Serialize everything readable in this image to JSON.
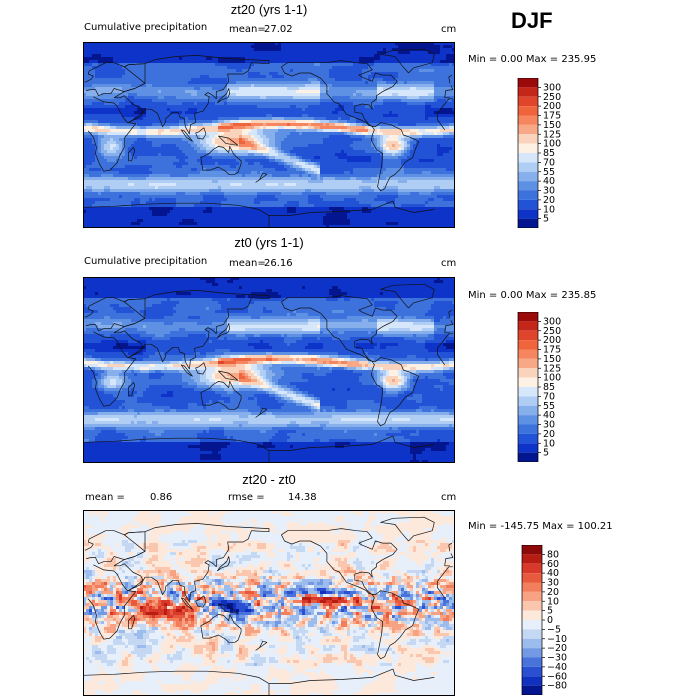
{
  "season": "DJF",
  "chart_data": [
    {
      "type": "heatmap",
      "title": "zt20 (yrs 1-1)",
      "subtitle": "Cumulative precipitation",
      "mean_label": "mean=",
      "mean": "27.02",
      "units": "cm",
      "minmax_text": "Min =    0.00 Max = 235.95",
      "min": 0.0,
      "max": 235.95,
      "colorbar_levels": [
        "300",
        "250",
        "200",
        "175",
        "150",
        "125",
        "100",
        "85",
        "70",
        "55",
        "40",
        "30",
        "20",
        "10",
        "5"
      ],
      "colorbar_colors": [
        "#9b0a0a",
        "#c4261a",
        "#e0452c",
        "#f0643d",
        "#f5865f",
        "#f7a887",
        "#fad3bd",
        "#fdf1e4",
        "#d7e7fb",
        "#b0cdf4",
        "#86afec",
        "#5e90e4",
        "#3d72dd",
        "#2252d6",
        "#0d33c8",
        "#03168f"
      ]
    },
    {
      "type": "heatmap",
      "title": "zt0 (yrs 1-1)",
      "subtitle": "Cumulative precipitation",
      "mean_label": "mean=",
      "mean": "26.16",
      "units": "cm",
      "minmax_text": "Min =    0.00 Max = 235.85",
      "min": 0.0,
      "max": 235.85,
      "colorbar_levels": [
        "300",
        "250",
        "200",
        "175",
        "150",
        "125",
        "100",
        "85",
        "70",
        "55",
        "40",
        "30",
        "20",
        "10",
        "5"
      ],
      "colorbar_colors": [
        "#9b0a0a",
        "#c4261a",
        "#e0452c",
        "#f0643d",
        "#f5865f",
        "#f7a887",
        "#fad3bd",
        "#fdf1e4",
        "#d7e7fb",
        "#b0cdf4",
        "#86afec",
        "#5e90e4",
        "#3d72dd",
        "#2252d6",
        "#0d33c8",
        "#03168f"
      ]
    },
    {
      "type": "heatmap",
      "title": "zt20 - zt0",
      "mean_label": "mean =",
      "mean": "0.86",
      "rmse_label": "rmse =",
      "rmse": "14.38",
      "units": "cm",
      "minmax_text": "Min = -145.75 Max = 100.21",
      "min": -145.75,
      "max": 100.21,
      "colorbar_levels": [
        "80",
        "60",
        "40",
        "30",
        "20",
        "10",
        "5",
        "0",
        "−5",
        "−10",
        "−20",
        "−30",
        "−40",
        "−60",
        "−80"
      ],
      "colorbar_colors": [
        "#8c0a0a",
        "#b81d14",
        "#d8392a",
        "#e85a3e",
        "#f27e5e",
        "#f6a283",
        "#fac6ad",
        "#fde8dc",
        "#e6effa",
        "#c4d8f4",
        "#9dbcee",
        "#7499e4",
        "#4a72db",
        "#2a4fd0",
        "#1030c0",
        "#03168f"
      ]
    }
  ]
}
